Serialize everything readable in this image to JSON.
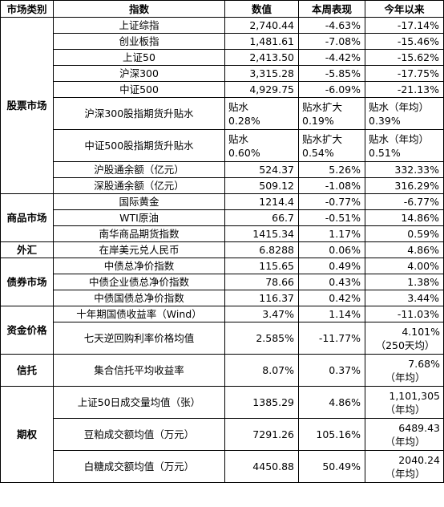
{
  "headers": [
    "市场类别",
    "指数",
    "数值",
    "本周表现",
    "今年以来"
  ],
  "categories": {
    "stock": "股票市场",
    "commodity": "商品市场",
    "fx": "外汇",
    "bond": "债券市场",
    "money": "资金价格",
    "trust": "信托",
    "options": "期权"
  },
  "rows": [
    {
      "name": "上证综指",
      "value": "2,740.44",
      "week": "-4.63%",
      "ytd": "-17.14%"
    },
    {
      "name": "创业板指",
      "value": "1,481.61",
      "week": "-7.08%",
      "ytd": "-15.46%"
    },
    {
      "name": "上证50",
      "value": "2,413.50",
      "week": "-4.42%",
      "ytd": "-15.62%"
    },
    {
      "name": "沪深300",
      "value": "3,315.28",
      "week": "-5.85%",
      "ytd": "-17.75%"
    },
    {
      "name": "中证500",
      "value": "4,929.75",
      "week": "-6.09%",
      "ytd": "-21.13%"
    },
    {
      "name": "沪深300股指期货升贴水",
      "value_l1": "贴水",
      "value_l2": "0.28%",
      "week_l1": "贴水扩大",
      "week_l2": "0.19%",
      "ytd_l1": "贴水（年均）",
      "ytd_l2": "0.39%"
    },
    {
      "name": "中证500股指期货升贴水",
      "value_l1": "贴水",
      "value_l2": "0.60%",
      "week_l1": "贴水扩大",
      "week_l2": "0.54%",
      "ytd_l1": "贴水（年均）",
      "ytd_l2": "0.51%"
    },
    {
      "name": "沪股通余额（亿元）",
      "value": "524.37",
      "week": "5.26%",
      "ytd": "332.33%"
    },
    {
      "name": "深股通余额（亿元）",
      "value": "509.12",
      "week": "-1.08%",
      "ytd": "316.29%"
    },
    {
      "name": "国际黄金",
      "value": "1214.4",
      "week": "-0.77%",
      "ytd": "-6.77%"
    },
    {
      "name": "WTI原油",
      "value": "66.7",
      "week": "-0.51%",
      "ytd": "14.86%"
    },
    {
      "name": "南华商品期货指数",
      "value": "1415.34",
      "week": "1.17%",
      "ytd": "0.59%"
    },
    {
      "name": "在岸美元兑人民币",
      "value": "6.8288",
      "week": "0.06%",
      "ytd": "4.86%"
    },
    {
      "name": "中债总净价指数",
      "value": "115.65",
      "week": "0.49%",
      "ytd": "4.00%"
    },
    {
      "name": "中债企业债总净价指数",
      "value": "78.66",
      "week": "0.43%",
      "ytd": "1.38%"
    },
    {
      "name": "中债国债总净价指数",
      "value": "116.37",
      "week": "0.42%",
      "ytd": "3.44%"
    },
    {
      "name": "十年期国债收益率（Wind）",
      "value": "3.47%",
      "week": "1.14%",
      "ytd": "-11.03%"
    },
    {
      "name": "七天逆回购利率价格均值",
      "value": "2.585%",
      "week": "-11.77%",
      "ytd_l1": "4.101%",
      "ytd_l2": "（250天均）"
    },
    {
      "name": "集合信托平均收益率",
      "value": "8.07%",
      "week": "0.37%",
      "ytd_l1": "7.68%",
      "ytd_l2": "（年均）"
    },
    {
      "name": "上证50日成交量均值（张）",
      "value": "1385.29",
      "week": "4.86%",
      "ytd_l1": "1,101,305",
      "ytd_l2": "（年均）"
    },
    {
      "name": "豆粕成交额均值（万元）",
      "value": "7291.26",
      "week": "105.16%",
      "ytd_l1": "6489.43",
      "ytd_l2": "（年均）"
    },
    {
      "name": "白糖成交额均值（万元）",
      "value": "4450.88",
      "week": "50.49%",
      "ytd_l1": "2040.24",
      "ytd_l2": "（年均）"
    }
  ]
}
